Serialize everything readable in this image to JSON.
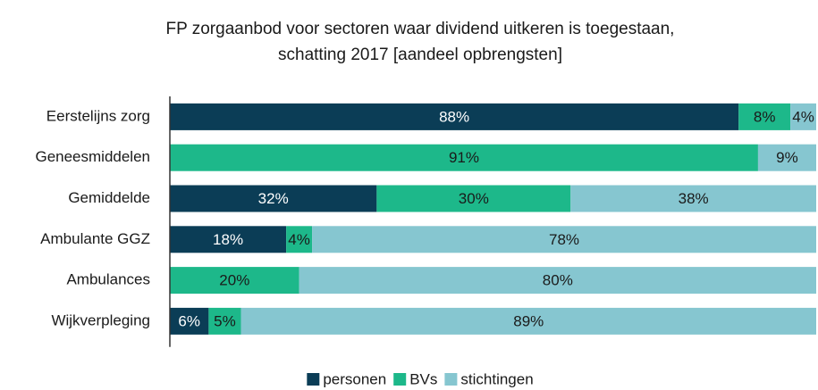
{
  "chart_data": {
    "type": "stacked_barh",
    "title": [
      "FP zorgaanbod voor sectoren waar dividend uitkeren is toegestaan,",
      "schatting 2017 [aandeel opbrengsten]"
    ],
    "categories": [
      "Eerstelijns zorg",
      "Geneesmiddelen",
      "Gemiddelde",
      "Ambulante GGZ",
      "Ambulances",
      "Wijkverpleging"
    ],
    "series": [
      {
        "name": "personen",
        "color": "#0b3d56",
        "values": [
          88,
          0,
          32,
          18,
          0,
          6
        ],
        "value_labels": [
          "88%",
          null,
          "32%",
          "18%",
          null,
          "6%"
        ]
      },
      {
        "name": "BVs",
        "color": "#1db88a",
        "values": [
          8,
          91,
          30,
          4,
          20,
          5
        ],
        "value_labels": [
          "8%",
          "91%",
          "30%",
          "4%",
          "20%",
          "5%"
        ]
      },
      {
        "name": "stichtingen",
        "color": "#86c6d0",
        "values": [
          4,
          9,
          38,
          78,
          80,
          89
        ],
        "value_labels": [
          "4%",
          "9%",
          "38%",
          "78%",
          "80%",
          "89%"
        ]
      }
    ],
    "xlim": [
      0,
      100
    ],
    "legend": "bottom"
  }
}
